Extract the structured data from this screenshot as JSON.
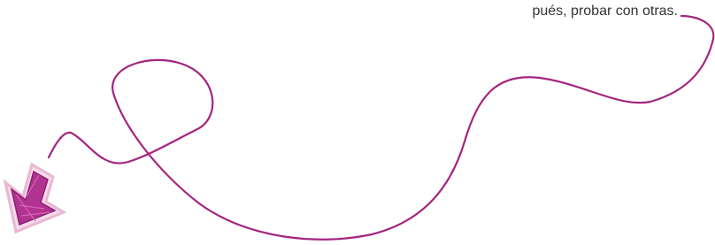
{
  "text": "pués, probar con otras."
}
